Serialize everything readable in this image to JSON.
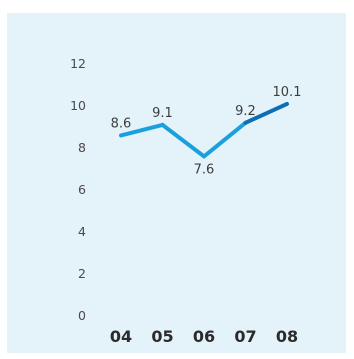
{
  "chart_data": {
    "type": "line",
    "categories": [
      "04",
      "05",
      "06",
      "07",
      "08"
    ],
    "series": [
      {
        "values": [
          8.6,
          9.1,
          7.6,
          9.2,
          10.1
        ]
      }
    ],
    "data_labels": [
      "8.6",
      "9.1",
      "7.6",
      "9.2",
      "10.1"
    ],
    "y_ticks": [
      "0",
      "2",
      "4",
      "6",
      "8",
      "10",
      "12"
    ],
    "ylim": [
      0,
      12
    ],
    "grid": false,
    "legend": "none",
    "colors": {
      "background": "#e4f2f9",
      "line": "#1aa1dd",
      "line_last_segment": "#0a6fb5"
    }
  }
}
